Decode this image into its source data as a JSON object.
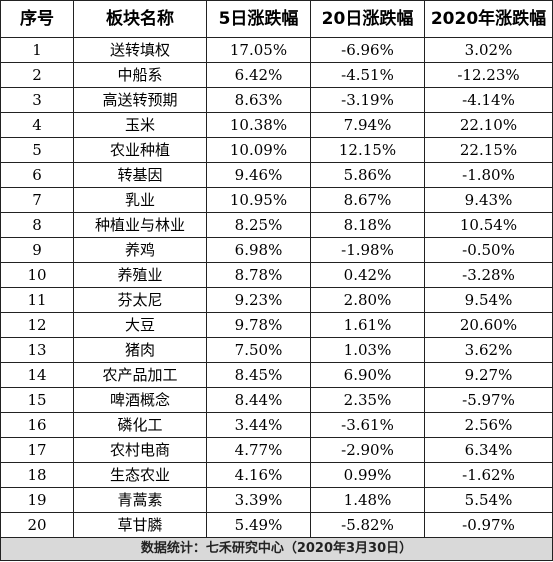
{
  "table": {
    "headers": [
      "序号",
      "板块名称",
      "5日涨跌幅",
      "20日涨跌幅",
      "2020年涨跌幅"
    ],
    "rows": [
      [
        "1",
        "送转填权",
        "17.05%",
        "-6.96%",
        "3.02%"
      ],
      [
        "2",
        "中船系",
        "6.42%",
        "-4.51%",
        "-12.23%"
      ],
      [
        "3",
        "高送转预期",
        "8.63%",
        "-3.19%",
        "-4.14%"
      ],
      [
        "4",
        "玉米",
        "10.38%",
        "7.94%",
        "22.10%"
      ],
      [
        "5",
        "农业种植",
        "10.09%",
        "12.15%",
        "22.15%"
      ],
      [
        "6",
        "转基因",
        "9.46%",
        "5.86%",
        "-1.80%"
      ],
      [
        "7",
        "乳业",
        "10.95%",
        "8.67%",
        "9.43%"
      ],
      [
        "8",
        "种植业与林业",
        "8.25%",
        "8.18%",
        "10.54%"
      ],
      [
        "9",
        "养鸡",
        "6.98%",
        "-1.98%",
        "-0.50%"
      ],
      [
        "10",
        "养殖业",
        "8.78%",
        "0.42%",
        "-3.28%"
      ],
      [
        "11",
        "芬太尼",
        "9.23%",
        "2.80%",
        "9.54%"
      ],
      [
        "12",
        "大豆",
        "9.78%",
        "1.61%",
        "20.60%"
      ],
      [
        "13",
        "猪肉",
        "7.50%",
        "1.03%",
        "3.62%"
      ],
      [
        "14",
        "农产品加工",
        "8.45%",
        "6.90%",
        "9.27%"
      ],
      [
        "15",
        "啤酒概念",
        "8.44%",
        "2.35%",
        "-5.97%"
      ],
      [
        "16",
        "磷化工",
        "3.44%",
        "-3.61%",
        "2.56%"
      ],
      [
        "17",
        "农村电商",
        "4.77%",
        "-2.90%",
        "6.34%"
      ],
      [
        "18",
        "生态农业",
        "4.16%",
        "0.99%",
        "-1.62%"
      ],
      [
        "19",
        "青蒿素",
        "3.39%",
        "1.48%",
        "5.54%"
      ],
      [
        "20",
        "草甘膦",
        "5.49%",
        "-5.82%",
        "-0.97%"
      ]
    ]
  },
  "footer": "数据统计：七禾研究中心（2020年3月30日）"
}
